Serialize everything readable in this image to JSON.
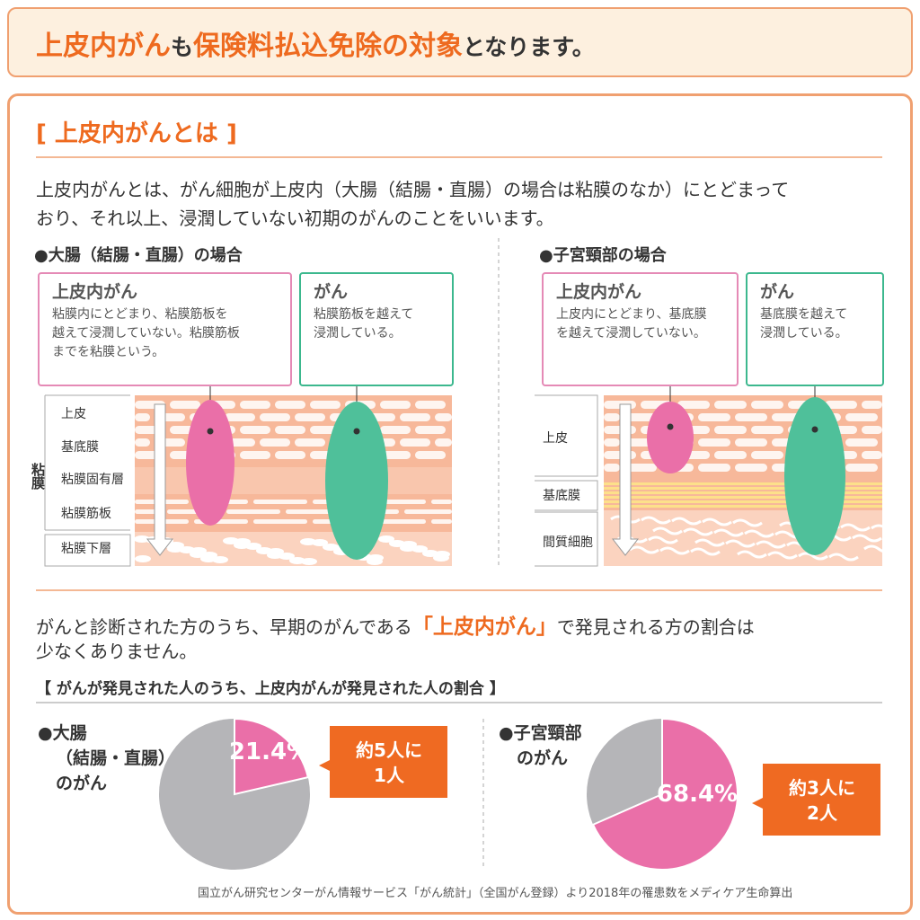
{
  "header": {
    "title_parts": [
      "上皮内がん",
      "も",
      "保険料払込免除の対象",
      "となります。"
    ]
  },
  "intro": {
    "heading": "[ 上皮内がんとは ]",
    "paragraph": [
      "上皮内がんとは、がん細胞が上皮内（大腸（結腸・直腸）の場合は粘膜のなか）にとどまって",
      "おり、それ以上、浸潤していない初期のがんのことをいいます。"
    ]
  },
  "colon": {
    "heading": "●大腸（結腸・直腸）の場合",
    "boxes": [
      {
        "title": "上皮内がん",
        "lines": [
          "粘膜内にとどまり、粘膜筋板を",
          "越えて浸潤していない。粘膜筋板",
          "までを粘膜という。"
        ]
      },
      {
        "title": "がん",
        "lines": [
          "粘膜筋板を越えて",
          "浸潤している。"
        ]
      }
    ],
    "group_label": "粘膜",
    "layers": [
      "上皮",
      "基底膜",
      "粘膜固有層",
      "粘膜筋板",
      "粘膜下層"
    ]
  },
  "cervix": {
    "heading": "●子宮頸部の場合",
    "boxes": [
      {
        "title": "上皮内がん",
        "lines": [
          "上皮内にとどまり、基底膜",
          "を越えて浸潤していない。"
        ]
      },
      {
        "title": "がん",
        "lines": [
          "基底膜を越えて",
          "浸潤している。"
        ]
      }
    ],
    "layers": [
      "上皮",
      "基底膜",
      "間質細胞"
    ]
  },
  "summary": {
    "line1_parts": [
      "がんと診断された方のうち、早期のがんである",
      "「上皮内がん」",
      "で発見される方の割合は"
    ],
    "line2": "少なくありません。",
    "subheading": "【 がんが発見された人のうち、上皮内がんが発見された人の割合 】"
  },
  "chart_data": [
    {
      "type": "pie",
      "title": [
        "●大腸",
        "（結腸・直腸）",
        "のがん"
      ],
      "values": [
        21.4
      ],
      "value_labels": [
        "21.4%"
      ],
      "color": "#ea6fa8",
      "rest_color": "#b5b5b8",
      "annotation": [
        "約5人に",
        "1人"
      ]
    },
    {
      "type": "pie",
      "title": [
        "●子宮頸部",
        "のがん"
      ],
      "values": [
        68.4
      ],
      "value_labels": [
        "68.4%"
      ],
      "color": "#ea6fa8",
      "rest_color": "#b5b5b8",
      "annotation": [
        "約3人に",
        "2人"
      ]
    }
  ],
  "source": "国立がん研究センターがん情報サービス「がん統計」（全国がん登録）より2018年の罹患数をメディケア生命算出"
}
